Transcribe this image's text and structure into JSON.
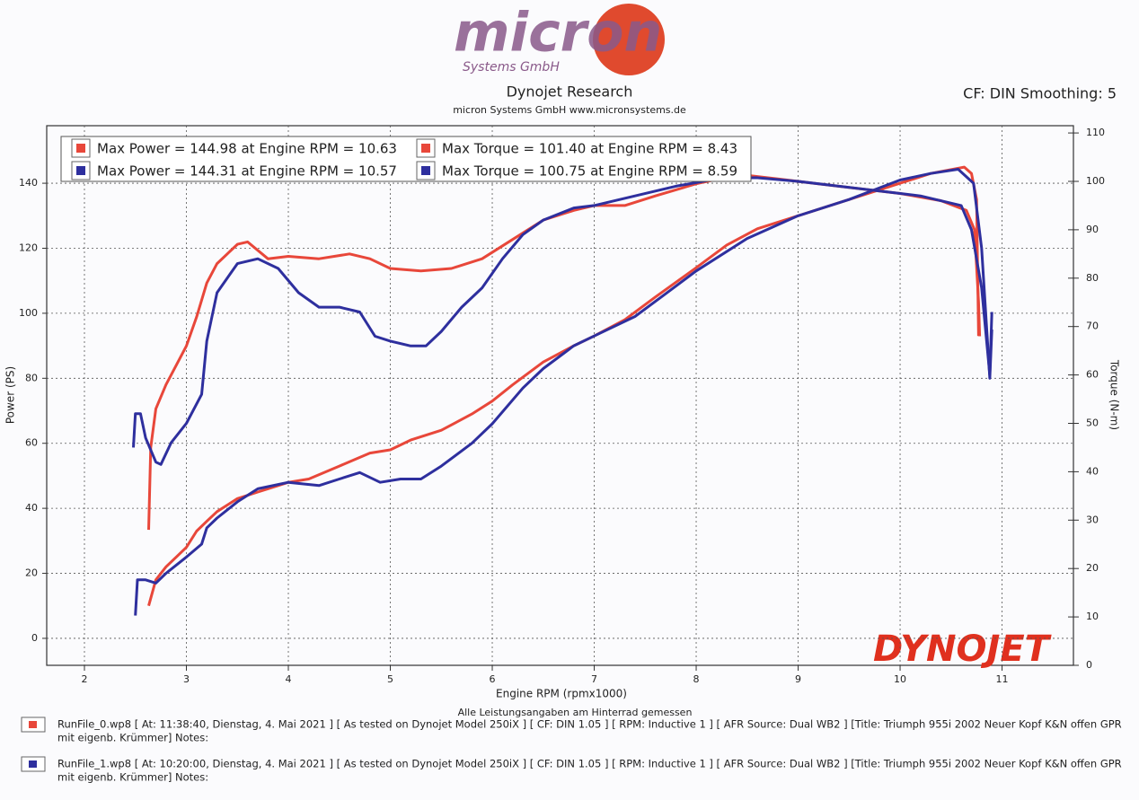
{
  "chart_data": {
    "type": "line",
    "logo": {
      "name": "micron",
      "tagline": "Systems GmbH"
    },
    "title": "Dynojet Research",
    "subtitle": "micron Systems GmbH  www.micronsystems.de",
    "settings_label": "CF: DIN Smoothing: 5",
    "watermark": "DYNOJET",
    "x_label": "Engine RPM (rpmx1000)",
    "y_label": "Power (PS)",
    "y2_label": "Torque (N-m)",
    "xlim": [
      1.63,
      11.7
    ],
    "xticks": [
      2,
      3,
      4,
      5,
      6,
      7,
      8,
      9,
      10,
      11
    ],
    "ylim": [
      -8.3,
      157.7
    ],
    "yticks": [
      0,
      20,
      40,
      60,
      80,
      100,
      120,
      140
    ],
    "y2lim": [
      0,
      111.5
    ],
    "y2ticks": [
      0,
      10,
      20,
      30,
      40,
      50,
      60,
      70,
      80,
      90,
      100,
      110
    ],
    "grid": true,
    "series": [
      {
        "name": "Max Power = 144.98 at Engine RPM = 10.63",
        "color": "#e8473a",
        "x": [
          2.63,
          2.7,
          2.8,
          2.9,
          3.0,
          3.1,
          3.2,
          3.3,
          3.5,
          3.7,
          3.9,
          4.0,
          4.2,
          4.5,
          4.8,
          5.0,
          5.2,
          5.5,
          5.8,
          6.0,
          6.2,
          6.5,
          6.8,
          7.0,
          7.3,
          7.6,
          8.0,
          8.3,
          8.6,
          9.0,
          9.5,
          10.0,
          10.3,
          10.63,
          10.7,
          10.75,
          10.77
        ],
        "values": [
          10,
          18,
          22,
          25,
          28,
          33,
          36,
          39,
          43,
          45,
          47,
          48,
          49,
          53,
          57,
          58,
          61,
          64,
          69,
          73,
          78,
          85,
          90,
          93,
          98,
          105,
          114,
          121,
          126,
          130,
          135,
          140,
          143,
          144.98,
          143,
          135,
          93
        ]
      },
      {
        "name": "Max Power = 144.31 at Engine RPM = 10.57",
        "color": "#2e2f9e",
        "x": [
          2.5,
          2.52,
          2.6,
          2.7,
          2.8,
          3.0,
          3.15,
          3.2,
          3.3,
          3.5,
          3.7,
          4.0,
          4.3,
          4.5,
          4.7,
          4.9,
          5.1,
          5.3,
          5.5,
          5.8,
          6.0,
          6.3,
          6.5,
          6.8,
          7.0,
          7.4,
          7.7,
          8.0,
          8.5,
          9.0,
          9.5,
          10.0,
          10.3,
          10.57,
          10.72,
          10.8,
          10.85,
          10.88,
          10.9
        ],
        "values": [
          7,
          18,
          18,
          17,
          20,
          25,
          29,
          34,
          37,
          42,
          46,
          48,
          47,
          49,
          51,
          48,
          49,
          49,
          53,
          60,
          66,
          77,
          83,
          90,
          93,
          99,
          106,
          113,
          123,
          130,
          135,
          141,
          143,
          144.31,
          140,
          120,
          95,
          80,
          95
        ]
      },
      {
        "name": "Max Torque = 101.40 at Engine RPM = 8.43",
        "color": "#e8473a",
        "axis": "y2",
        "x": [
          2.63,
          2.65,
          2.7,
          2.8,
          2.9,
          3.0,
          3.1,
          3.2,
          3.3,
          3.5,
          3.6,
          3.8,
          4.0,
          4.3,
          4.6,
          4.8,
          5.0,
          5.3,
          5.6,
          5.9,
          6.2,
          6.5,
          6.8,
          7.0,
          7.3,
          7.6,
          8.0,
          8.43,
          8.8,
          9.2,
          9.6,
          10.0,
          10.4,
          10.65,
          10.73,
          10.77,
          10.78
        ],
        "values": [
          28,
          45,
          53,
          58,
          62,
          66,
          72,
          79,
          83,
          87,
          87.5,
          84,
          84.5,
          84,
          85,
          84,
          82,
          81.5,
          82,
          84,
          88,
          92,
          94,
          95,
          95,
          97,
          99.5,
          101.4,
          100.5,
          99.5,
          98.5,
          97.5,
          96,
          94,
          90,
          75,
          68
        ]
      },
      {
        "name": "Max Torque = 100.75 at Engine RPM = 8.59",
        "color": "#2e2f9e",
        "axis": "y2",
        "x": [
          2.48,
          2.5,
          2.55,
          2.6,
          2.7,
          2.75,
          2.85,
          3.0,
          3.15,
          3.2,
          3.3,
          3.5,
          3.7,
          3.9,
          4.1,
          4.3,
          4.5,
          4.7,
          4.85,
          5.0,
          5.2,
          5.35,
          5.5,
          5.7,
          5.9,
          6.1,
          6.3,
          6.5,
          6.8,
          7.0,
          7.4,
          7.8,
          8.2,
          8.59,
          9.0,
          9.4,
          9.8,
          10.2,
          10.6,
          10.7,
          10.8,
          10.88,
          10.9
        ],
        "values": [
          45,
          52,
          52,
          47,
          42,
          41.5,
          46,
          50,
          56,
          67,
          77,
          83,
          84,
          82,
          77,
          74,
          74,
          73,
          68,
          67,
          66,
          66,
          69,
          74,
          78,
          84,
          89,
          92,
          94.5,
          95,
          97,
          99,
          100.5,
          100.75,
          100,
          99,
          98,
          97,
          95,
          90,
          78,
          60,
          73
        ]
      }
    ],
    "footnote": "Alle Leistungsangaben am Hinterrad gemessen",
    "runs": [
      {
        "color": "#e8473a",
        "line1": "RunFile_0.wp8 [ At: 11:38:40, Dienstag, 4. Mai 2021 ] [ As tested on Dynojet Model 250iX ] [ CF: DIN 1.05 ] [ RPM: Inductive 1 ] [ AFR Source: Dual WB2 ] [Title: Triumph 955i 2002 Neuer Kopf K&N offen GPR",
        "line2": "mit eigenb. Krümmer]  Notes:"
      },
      {
        "color": "#2e2f9e",
        "line1": "RunFile_1.wp8 [ At: 10:20:00, Dienstag, 4. Mai 2021 ] [ As tested on Dynojet Model 250iX ] [ CF: DIN 1.05 ] [ RPM: Inductive 1 ] [ AFR Source: Dual WB2 ] [Title: Triumph 955i 2002 Neuer Kopf K&N offen GPR",
        "line2": "mit eigenb. Krümmer]  Notes:"
      }
    ]
  }
}
